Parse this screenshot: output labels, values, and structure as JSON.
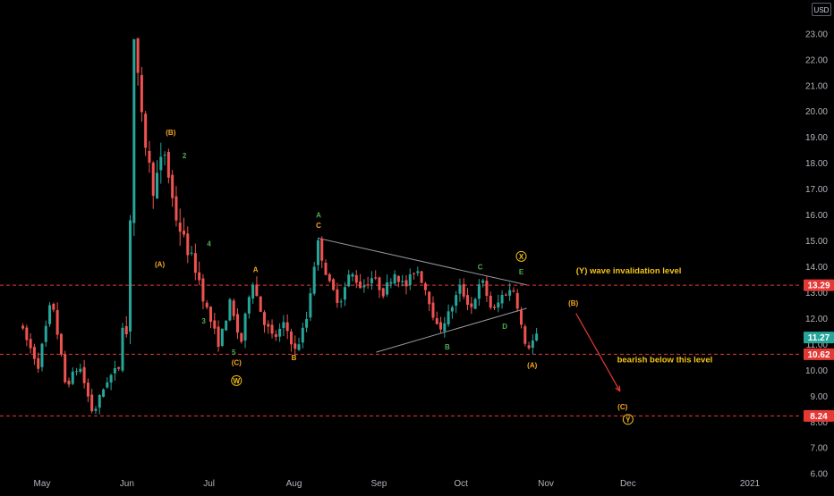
{
  "currency": "USD",
  "colors": {
    "background": "#000000",
    "up": "#26a69a",
    "down": "#ef5350",
    "dashed_level": "#e53935",
    "trendline": "#9598a1",
    "wave_orange": "#f5a623",
    "wave_green": "#4caf50",
    "wave_yellow": "#f2c318",
    "arrow": "#e53935",
    "text_note": "#f2c318"
  },
  "chart_data": {
    "type": "candlestick",
    "x_tick_labels": [
      "May",
      "Jun",
      "Jul",
      "Aug",
      "Sep",
      "Oct",
      "Nov",
      "Dec",
      "2021"
    ],
    "y_tick_values": [
      6,
      7,
      8,
      9,
      10,
      11,
      12,
      13,
      14,
      15,
      16,
      17,
      18,
      19,
      20,
      21,
      22,
      23
    ],
    "y_tick_labels": [
      "6.00",
      "7.00",
      "8.00",
      "9.00",
      "10.00",
      "11.00",
      "12.00",
      "13.00",
      "14.00",
      "15.00",
      "16.00",
      "17.00",
      "18.00",
      "19.00",
      "20.00",
      "21.00",
      "22.00",
      "23.00"
    ],
    "ylim": [
      5.8,
      24.1
    ],
    "price_path_x": [
      "Apr 24",
      "May 1",
      "May 6",
      "May 11",
      "May 16",
      "May 21",
      "May 26",
      "May 31",
      "Jun 1",
      "Jun 2",
      "Jun 3",
      "Jun 5",
      "Jun 8",
      "Jun 12",
      "Jun 16",
      "Jun 20",
      "Jun 24",
      "Jun 28",
      "Jul 2",
      "Jul 6",
      "Jul 10",
      "Jul 14",
      "Jul 18",
      "Jul 22",
      "Jul 26",
      "Jul 30",
      "Aug 3",
      "Aug 7",
      "Aug 11",
      "Aug 15",
      "Aug 19",
      "Aug 23",
      "Aug 27",
      "Aug 31",
      "Sep 4",
      "Sep 8",
      "Sep 12",
      "Sep 16",
      "Sep 20",
      "Sep 24",
      "Sep 28",
      "Oct 2",
      "Oct 6",
      "Oct 10",
      "Oct 14",
      "Oct 18",
      "Oct 22",
      "Oct 26",
      "Oct 30"
    ],
    "price_path_y": [
      11.8,
      10.2,
      12.8,
      9.4,
      10.2,
      8.3,
      9.6,
      10.2,
      12.2,
      11.0,
      13.0,
      22.8,
      19.5,
      17.0,
      18.5,
      16.0,
      14.8,
      13.8,
      12.2,
      11.0,
      12.6,
      11.0,
      13.6,
      12.0,
      11.2,
      11.8,
      10.7,
      12.0,
      15.0,
      13.4,
      12.6,
      13.8,
      13.2,
      13.6,
      13.0,
      13.8,
      13.2,
      14.0,
      13.0,
      11.5,
      12.2,
      13.2,
      12.4,
      13.5,
      12.2,
      13.0,
      13.1,
      10.8,
      11.3
    ],
    "current_price": "11.27",
    "horizontal_levels": [
      {
        "value": 13.29,
        "label": "13.29"
      },
      {
        "value": 10.62,
        "label": "10.62"
      },
      {
        "value": 8.24,
        "label": "8.24"
      }
    ],
    "triangle_lines": [
      {
        "from": [
          "Aug 10",
          15.1
        ],
        "to": [
          "Oct 25",
          13.3
        ]
      },
      {
        "from": [
          "Aug 31",
          10.7
        ],
        "to": [
          "Oct 25",
          12.4
        ]
      }
    ],
    "wave_labels": [
      {
        "text": "(B)",
        "x": "Jun 17",
        "y": 19.1,
        "color": "orange"
      },
      {
        "text": "(A)",
        "x": "Jun 13",
        "y": 14.0,
        "color": "orange"
      },
      {
        "text": "2",
        "x": "Jun 22",
        "y": 18.2,
        "color": "green"
      },
      {
        "text": "4",
        "x": "Jul 1",
        "y": 14.8,
        "color": "green"
      },
      {
        "text": "3",
        "x": "Jun 29",
        "y": 11.8,
        "color": "green"
      },
      {
        "text": "5",
        "x": "Jul 10",
        "y": 10.6,
        "color": "green"
      },
      {
        "text": "(C)",
        "x": "Jul 11",
        "y": 10.2,
        "color": "orange"
      },
      {
        "text": "W",
        "x": "Jul 11",
        "y": 9.5,
        "color": "yellow",
        "circled": true
      },
      {
        "text": "A",
        "x": "Jul 18",
        "y": 13.8,
        "color": "orange"
      },
      {
        "text": "B",
        "x": "Aug 1",
        "y": 10.4,
        "color": "orange"
      },
      {
        "text": "A",
        "x": "Aug 10",
        "y": 15.9,
        "color": "green"
      },
      {
        "text": "C",
        "x": "Aug 10",
        "y": 15.5,
        "color": "orange"
      },
      {
        "text": "B",
        "x": "Sep 26",
        "y": 10.8,
        "color": "green"
      },
      {
        "text": "C",
        "x": "Oct 8",
        "y": 13.9,
        "color": "green"
      },
      {
        "text": "D",
        "x": "Oct 17",
        "y": 11.6,
        "color": "green"
      },
      {
        "text": "E",
        "x": "Oct 23",
        "y": 13.7,
        "color": "green"
      },
      {
        "text": "X",
        "x": "Oct 23",
        "y": 14.3,
        "color": "yellow",
        "circled": true
      },
      {
        "text": "(A)",
        "x": "Oct 27",
        "y": 10.1,
        "color": "orange"
      },
      {
        "text": "(B)",
        "x": "Nov 11",
        "y": 12.5,
        "color": "orange"
      },
      {
        "text": "(C)",
        "x": "Nov 29",
        "y": 8.5,
        "color": "orange"
      },
      {
        "text": "Y",
        "x": "Dec 1",
        "y": 8.0,
        "color": "yellow",
        "circled": true
      }
    ],
    "annotations": [
      {
        "text": "(Y) wave invalidation level",
        "x": "Nov 12",
        "y": 13.75
      },
      {
        "text": "bearish below this level",
        "x": "Nov 27",
        "y": 10.3
      }
    ],
    "projection_arrow": {
      "from": [
        "Nov 12",
        12.2
      ],
      "to": [
        "Nov 28",
        9.2
      ]
    }
  }
}
